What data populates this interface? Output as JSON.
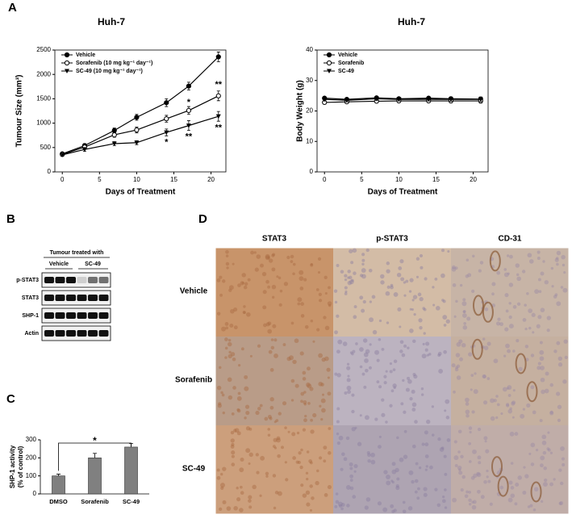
{
  "panel_labels": [
    "A",
    "B",
    "C",
    "D"
  ],
  "chart_data": [
    {
      "type": "line",
      "title": "Huh-7",
      "xlabel": "Days of Treatment",
      "ylabel": "Tumour Size (mm³)",
      "x": [
        0,
        3,
        7,
        10,
        14,
        17,
        21
      ],
      "xlim": [
        -1,
        22
      ],
      "xticks": [
        0,
        5,
        10,
        15,
        20
      ],
      "ylim": [
        0,
        2500
      ],
      "yticks": [
        0,
        500,
        1000,
        1500,
        2000,
        2500
      ],
      "legend": "upper left",
      "series": [
        {
          "name": "Vehicle",
          "color": "#000000",
          "marker": "circle",
          "values": [
            370,
            540,
            850,
            1120,
            1420,
            1760,
            2360
          ],
          "errors": [
            30,
            40,
            50,
            60,
            80,
            80,
            100
          ]
        },
        {
          "name": "Sorafenib (10 mg kg⁻¹ day⁻¹)",
          "color": "#000000",
          "marker": "open-circle",
          "values": [
            360,
            510,
            760,
            860,
            1090,
            1260,
            1560
          ],
          "errors": [
            30,
            40,
            50,
            60,
            70,
            80,
            100
          ]
        },
        {
          "name": "SC-49 (10 mg kg⁻¹ day⁻¹)",
          "color": "#000000",
          "marker": "triangle",
          "values": [
            350,
            460,
            580,
            600,
            810,
            950,
            1140
          ],
          "errors": [
            30,
            40,
            40,
            40,
            70,
            100,
            100
          ]
        }
      ],
      "annotations": [
        {
          "text": "*",
          "x": 14,
          "y": 600
        },
        {
          "text": "*",
          "x": 17,
          "y": 1420
        },
        {
          "text": "**",
          "x": 17,
          "y": 720
        },
        {
          "text": "**",
          "x": 21,
          "y": 1790
        },
        {
          "text": "**",
          "x": 21,
          "y": 900
        }
      ]
    },
    {
      "type": "line",
      "title": "Huh-7",
      "xlabel": "Days of Treatment",
      "ylabel": "Body Weight (g)",
      "x": [
        0,
        3,
        7,
        10,
        14,
        17,
        21
      ],
      "xlim": [
        -1,
        22
      ],
      "xticks": [
        0,
        5,
        10,
        15,
        20
      ],
      "ylim": [
        0,
        40
      ],
      "yticks": [
        0,
        10,
        20,
        30,
        40
      ],
      "legend": "upper left",
      "series": [
        {
          "name": "Vehicle",
          "color": "#000000",
          "marker": "circle",
          "values": [
            24.2,
            23.8,
            24.3,
            24.0,
            24.2,
            24.0,
            23.9
          ],
          "errors": [
            0.5,
            0.5,
            0.5,
            0.5,
            0.5,
            0.6,
            0.7
          ]
        },
        {
          "name": "Sorafenib",
          "color": "#000000",
          "marker": "open-circle",
          "values": [
            22.8,
            23.0,
            23.2,
            23.3,
            23.3,
            23.3,
            23.3
          ],
          "errors": [
            0.5,
            0.5,
            0.5,
            0.5,
            0.5,
            0.6,
            0.7
          ]
        },
        {
          "name": "SC-49",
          "color": "#000000",
          "marker": "triangle",
          "values": [
            23.8,
            23.5,
            24.0,
            23.8,
            23.8,
            23.8,
            23.8
          ],
          "errors": [
            0.5,
            0.5,
            0.5,
            0.5,
            0.5,
            0.6,
            0.7
          ]
        }
      ]
    },
    {
      "type": "bar",
      "ylabel": [
        "SHP-1 activity",
        "(% of control)"
      ],
      "categories": [
        "DMSO",
        "Sorafenib",
        "SC-49"
      ],
      "values": [
        100,
        200,
        260
      ],
      "errors": [
        10,
        25,
        20
      ],
      "color": "#808080",
      "ylim": [
        0,
        300
      ],
      "yticks": [
        0,
        100,
        200,
        300
      ],
      "annotations": [
        {
          "text": "*"
        }
      ]
    }
  ],
  "blot": {
    "header": "Tumour treated with",
    "groups": [
      "Vehicle",
      "SC-49"
    ],
    "rows": [
      "p-STAT3",
      "STAT3",
      "SHP-1",
      "Actin"
    ]
  },
  "histology": {
    "columns": [
      "STAT3",
      "p-STAT3",
      "CD-31"
    ],
    "rows": [
      "Vehicle",
      "Sorafenib",
      "SC-49"
    ]
  }
}
